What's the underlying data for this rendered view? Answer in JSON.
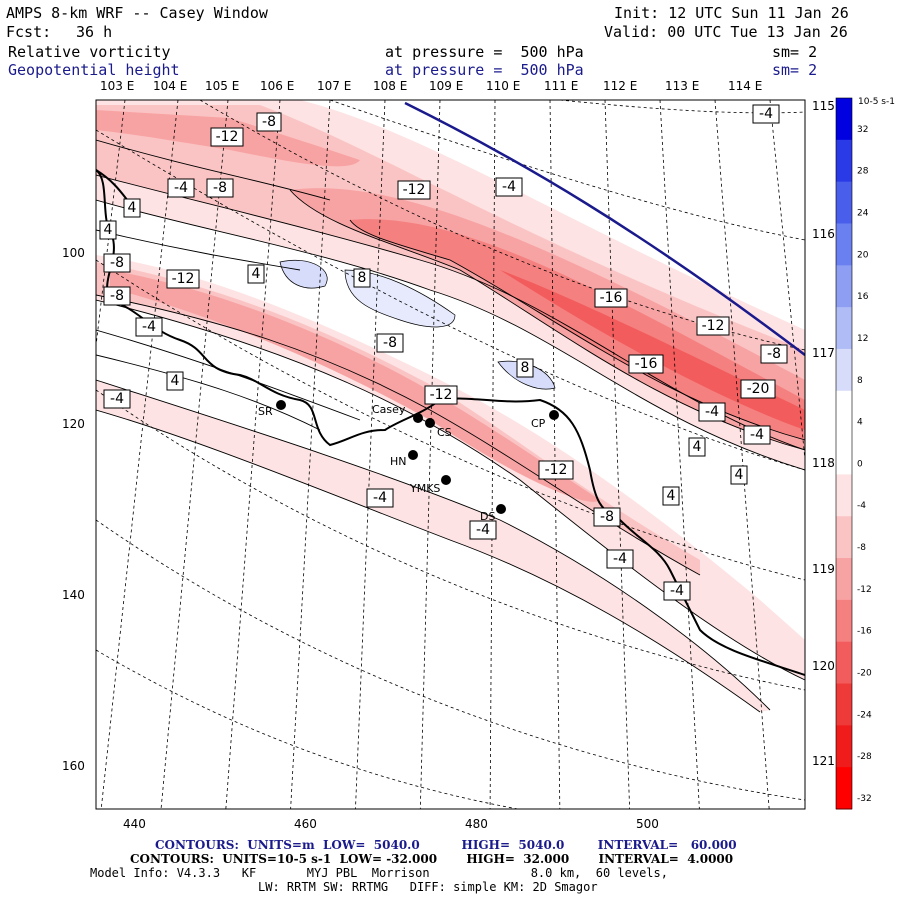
{
  "header": {
    "title": "AMPS 8-km WRF -- Casey Window",
    "init": "Init: 12 UTC Sun 11 Jan 26",
    "fcst_label": "Fcst:",
    "fcst_value": "36 h",
    "valid": "Valid: 00 UTC Tue 13 Jan 26",
    "field1_name": "Relative vorticity",
    "field1_level": "at pressure =  500 hPa",
    "field1_sm": "sm= 2",
    "field2_name": "Geopotential height",
    "field2_level": "at pressure =  500 hPa",
    "field2_sm": "sm= 2"
  },
  "map": {
    "lon_top": [
      "103 E",
      "104 E",
      "105 E",
      "106 E",
      "107 E",
      "108 E",
      "109 E",
      "110 E",
      "111 E",
      "112 E",
      "113 E",
      "114 E"
    ],
    "lon_right": [
      "115 E",
      "116 E",
      "117 E",
      "118 E",
      "119 E",
      "120 E",
      "121 E"
    ],
    "y_ticks": [
      "100",
      "120",
      "140",
      "160"
    ],
    "x_ticks": [
      "440",
      "460",
      "480",
      "500"
    ],
    "stations": [
      {
        "name": "SR"
      },
      {
        "name": "Casey"
      },
      {
        "name": "CS"
      },
      {
        "name": "CP"
      },
      {
        "name": "HN"
      },
      {
        "name": "YMKS"
      },
      {
        "name": "DS"
      }
    ],
    "contour_labels": [
      "-8",
      "-12",
      "-4",
      "-8",
      "-12",
      "-4",
      "4",
      "4",
      "-8",
      "-8",
      "-12",
      "4",
      "8",
      "-4",
      "-16",
      "-12",
      "-8",
      "-8",
      "-16",
      "8",
      "4",
      "-4",
      "-12",
      "-20",
      "-4",
      "-4",
      "-12",
      "4",
      "-4",
      "4",
      "-8",
      "4",
      "-4",
      "-4",
      "-4",
      "-4"
    ]
  },
  "colorbar": {
    "unit": "10-5 s-1",
    "levels": [
      "32",
      "28",
      "24",
      "20",
      "16",
      "12",
      "8",
      "4",
      "0",
      "-4",
      "-8",
      "-12",
      "-16",
      "-20",
      "-24",
      "-28",
      "-32"
    ],
    "colors": [
      "#0000e0",
      "#2a3ae6",
      "#4a5eec",
      "#6a7ff0",
      "#8d9ef3",
      "#b0bcf6",
      "#d6dcfa",
      "#ffffff",
      "#ffffff",
      "#fde3e3",
      "#fbc4c4",
      "#f8a3a3",
      "#f58080",
      "#f25c5c",
      "#ef3a3a",
      "#f01c1c",
      "#ff0000"
    ]
  },
  "footer": {
    "line1": "CONTOURS:  UNITS=m  LOW=  5040.0          HIGH=  5040.0        INTERVAL=   60.000",
    "line2": "CONTOURS:  UNITS=10-5 s-1  LOW= -32.000       HIGH=  32.000       INTERVAL=  4.0000",
    "line3": "Model Info: V4.3.3   KF       MYJ PBL  Morrison              8.0 km,  60 levels,",
    "line4": "LW: RRTM SW: RRTMG   DIFF: simple KM: 2D Smagor"
  }
}
